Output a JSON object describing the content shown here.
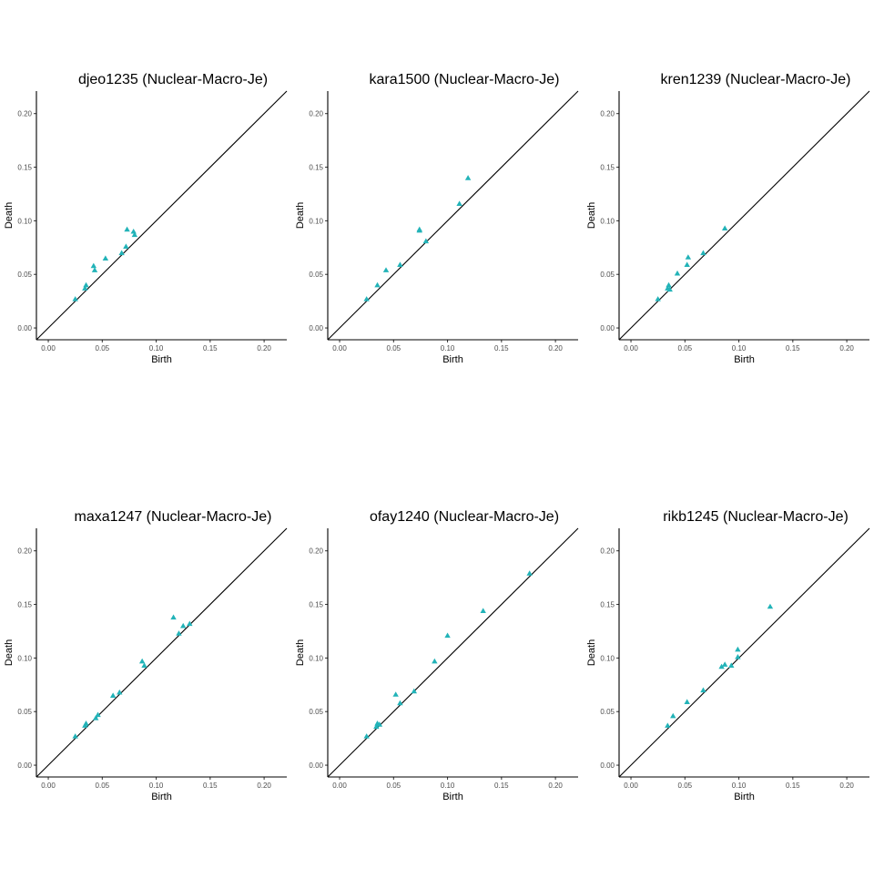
{
  "chart_data": [
    {
      "type": "scatter",
      "title": "djeo1235 (Nuclear-Macro-Je)",
      "x_label": "Birth",
      "y_label": "Death",
      "color": "#22b3b8",
      "marker": "triangle",
      "x": [
        0.025,
        0.034,
        0.035,
        0.042,
        0.043,
        0.053,
        0.068,
        0.072,
        0.073,
        0.079,
        0.08
      ],
      "values": [
        0.027,
        0.037,
        0.04,
        0.058,
        0.054,
        0.065,
        0.07,
        0.076,
        0.092,
        0.09,
        0.087
      ],
      "xlim": [
        -0.011,
        0.221
      ],
      "ylim": [
        -0.011,
        0.221
      ],
      "xticks": [
        {
          "value": 0,
          "label": "0.00"
        },
        {
          "value": 0.05,
          "label": "0.05"
        },
        {
          "value": 0.1,
          "label": "0.10"
        },
        {
          "value": 0.15,
          "label": "0.15"
        },
        {
          "value": 0.2,
          "label": "0.20"
        }
      ],
      "yticks": [
        {
          "value": 0,
          "label": "0.00"
        },
        {
          "value": 0.05,
          "label": "0.05"
        },
        {
          "value": 0.1,
          "label": "0.10"
        },
        {
          "value": 0.15,
          "label": "0.15"
        },
        {
          "value": 0.2,
          "label": "0.20"
        }
      ]
    },
    {
      "type": "scatter",
      "title": "kara1500 (Nuclear-Macro-Je)",
      "x_label": "Birth",
      "y_label": "Death",
      "color": "#22b3b8",
      "marker": "triangle",
      "x": [
        0.025,
        0.035,
        0.043,
        0.056,
        0.074,
        0.074,
        0.08,
        0.111,
        0.119
      ],
      "values": [
        0.027,
        0.04,
        0.054,
        0.059,
        0.092,
        0.091,
        0.081,
        0.116,
        0.14
      ],
      "xlim": [
        -0.011,
        0.221
      ],
      "ylim": [
        -0.011,
        0.221
      ],
      "xticks": [
        {
          "value": 0,
          "label": "0.00"
        },
        {
          "value": 0.05,
          "label": "0.05"
        },
        {
          "value": 0.1,
          "label": "0.10"
        },
        {
          "value": 0.15,
          "label": "0.15"
        },
        {
          "value": 0.2,
          "label": "0.20"
        }
      ],
      "yticks": [
        {
          "value": 0,
          "label": "0.00"
        },
        {
          "value": 0.05,
          "label": "0.05"
        },
        {
          "value": 0.1,
          "label": "0.10"
        },
        {
          "value": 0.15,
          "label": "0.15"
        },
        {
          "value": 0.2,
          "label": "0.20"
        }
      ]
    },
    {
      "type": "scatter",
      "title": "kren1239 (Nuclear-Macro-Je)",
      "x_label": "Birth",
      "y_label": "Death",
      "color": "#22b3b8",
      "marker": "triangle",
      "x": [
        0.025,
        0.034,
        0.035,
        0.036,
        0.043,
        0.052,
        0.053,
        0.067,
        0.087
      ],
      "values": [
        0.027,
        0.037,
        0.04,
        0.036,
        0.051,
        0.059,
        0.066,
        0.07,
        0.093
      ],
      "xlim": [
        -0.011,
        0.221
      ],
      "ylim": [
        -0.011,
        0.221
      ],
      "xticks": [
        {
          "value": 0,
          "label": "0.00"
        },
        {
          "value": 0.05,
          "label": "0.05"
        },
        {
          "value": 0.1,
          "label": "0.10"
        },
        {
          "value": 0.15,
          "label": "0.15"
        },
        {
          "value": 0.2,
          "label": "0.20"
        }
      ],
      "yticks": [
        {
          "value": 0,
          "label": "0.00"
        },
        {
          "value": 0.05,
          "label": "0.05"
        },
        {
          "value": 0.1,
          "label": "0.10"
        },
        {
          "value": 0.15,
          "label": "0.15"
        },
        {
          "value": 0.2,
          "label": "0.20"
        }
      ]
    },
    {
      "type": "scatter",
      "title": "maxa1247 (Nuclear-Macro-Je)",
      "x_label": "Birth",
      "y_label": "Death",
      "color": "#22b3b8",
      "marker": "triangle",
      "x": [
        0.025,
        0.034,
        0.035,
        0.044,
        0.046,
        0.06,
        0.066,
        0.087,
        0.089,
        0.116,
        0.121,
        0.125,
        0.131
      ],
      "values": [
        0.027,
        0.037,
        0.039,
        0.044,
        0.047,
        0.065,
        0.068,
        0.097,
        0.093,
        0.138,
        0.123,
        0.13,
        0.132
      ],
      "xlim": [
        -0.011,
        0.221
      ],
      "ylim": [
        -0.011,
        0.221
      ],
      "xticks": [
        {
          "value": 0,
          "label": "0.00"
        },
        {
          "value": 0.05,
          "label": "0.05"
        },
        {
          "value": 0.1,
          "label": "0.10"
        },
        {
          "value": 0.15,
          "label": "0.15"
        },
        {
          "value": 0.2,
          "label": "0.20"
        }
      ],
      "yticks": [
        {
          "value": 0,
          "label": "0.00"
        },
        {
          "value": 0.05,
          "label": "0.05"
        },
        {
          "value": 0.1,
          "label": "0.10"
        },
        {
          "value": 0.15,
          "label": "0.15"
        },
        {
          "value": 0.2,
          "label": "0.20"
        }
      ]
    },
    {
      "type": "scatter",
      "title": "ofay1240 (Nuclear-Macro-Je)",
      "x_label": "Birth",
      "y_label": "Death",
      "color": "#22b3b8",
      "marker": "triangle",
      "x": [
        0.025,
        0.034,
        0.035,
        0.037,
        0.052,
        0.056,
        0.069,
        0.088,
        0.1,
        0.133,
        0.176
      ],
      "values": [
        0.027,
        0.036,
        0.039,
        0.038,
        0.066,
        0.058,
        0.069,
        0.097,
        0.121,
        0.144,
        0.179
      ],
      "xlim": [
        -0.011,
        0.221
      ],
      "ylim": [
        -0.011,
        0.221
      ],
      "xticks": [
        {
          "value": 0,
          "label": "0.00"
        },
        {
          "value": 0.05,
          "label": "0.05"
        },
        {
          "value": 0.1,
          "label": "0.10"
        },
        {
          "value": 0.15,
          "label": "0.15"
        },
        {
          "value": 0.2,
          "label": "0.20"
        }
      ],
      "yticks": [
        {
          "value": 0,
          "label": "0.00"
        },
        {
          "value": 0.05,
          "label": "0.05"
        },
        {
          "value": 0.1,
          "label": "0.10"
        },
        {
          "value": 0.15,
          "label": "0.15"
        },
        {
          "value": 0.2,
          "label": "0.20"
        }
      ]
    },
    {
      "type": "scatter",
      "title": "rikb1245 (Nuclear-Macro-Je)",
      "x_label": "Birth",
      "y_label": "Death",
      "color": "#22b3b8",
      "marker": "triangle",
      "x": [
        0.034,
        0.039,
        0.052,
        0.067,
        0.084,
        0.087,
        0.093,
        0.099,
        0.099,
        0.129
      ],
      "values": [
        0.037,
        0.046,
        0.059,
        0.07,
        0.092,
        0.094,
        0.093,
        0.101,
        0.108,
        0.148
      ],
      "xlim": [
        -0.011,
        0.221
      ],
      "ylim": [
        -0.011,
        0.221
      ],
      "xticks": [
        {
          "value": 0,
          "label": "0.00"
        },
        {
          "value": 0.05,
          "label": "0.05"
        },
        {
          "value": 0.1,
          "label": "0.10"
        },
        {
          "value": 0.15,
          "label": "0.15"
        },
        {
          "value": 0.2,
          "label": "0.20"
        }
      ],
      "yticks": [
        {
          "value": 0,
          "label": "0.00"
        },
        {
          "value": 0.05,
          "label": "0.05"
        },
        {
          "value": 0.1,
          "label": "0.10"
        },
        {
          "value": 0.15,
          "label": "0.15"
        },
        {
          "value": 0.2,
          "label": "0.20"
        }
      ]
    }
  ]
}
